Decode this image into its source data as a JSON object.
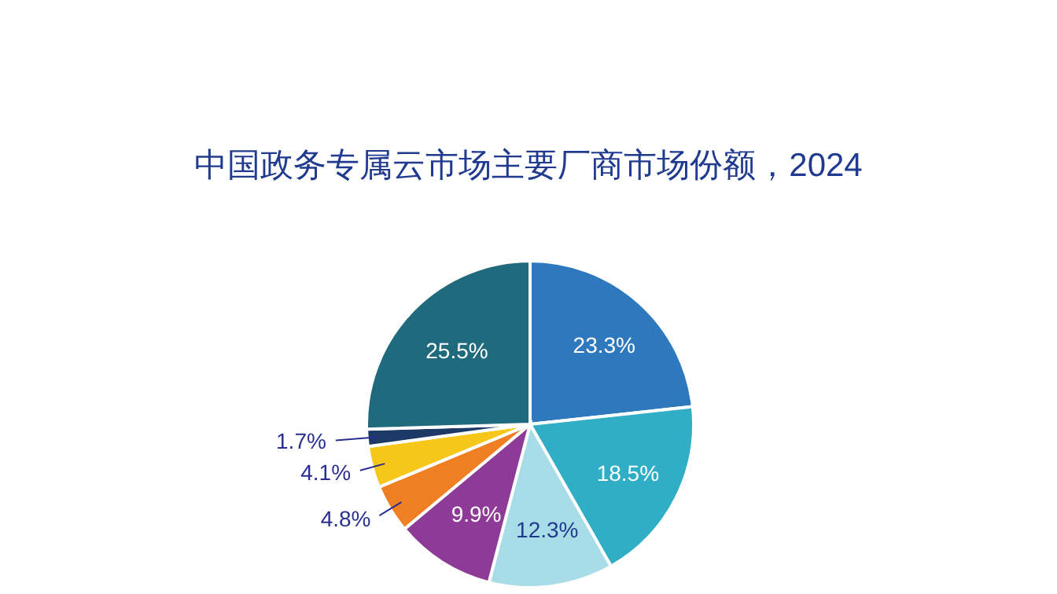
{
  "chart_data": {
    "type": "pie",
    "title": "中国政务专属云市场主要厂商市场份额，2024",
    "categories": [
      null,
      null,
      null,
      null,
      null,
      null,
      null,
      null
    ],
    "values": [
      23.3,
      18.5,
      12.3,
      9.9,
      4.8,
      4.1,
      1.7,
      25.5
    ],
    "value_labels": [
      "23.3%",
      "18.5%",
      "12.3%",
      "9.9%",
      "4.8%",
      "4.1%",
      "1.7%",
      "25.5%"
    ],
    "colors": [
      "#2e78bd",
      "#30aec6",
      "#a8dce6",
      "#8e3b97",
      "#f07f24",
      "#f6c619",
      "#1d3a66",
      "#1f6a7c"
    ]
  }
}
